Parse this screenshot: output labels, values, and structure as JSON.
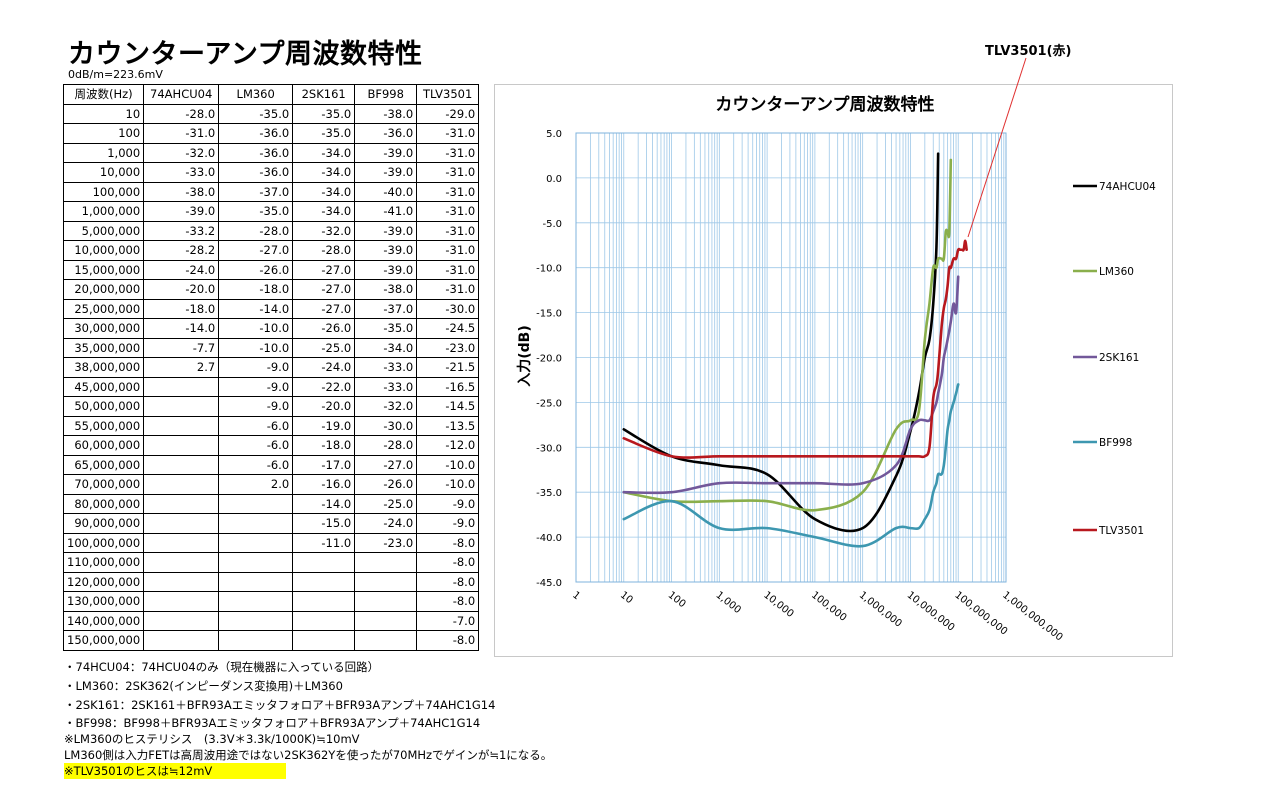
{
  "page": {
    "title": "カウンターアンプ周波数特性",
    "unit_note": "0dB/m=223.6mV",
    "callout_label": "TLV3501(赤)"
  },
  "table": {
    "headers": [
      "周波数(Hz)",
      "74AHCU04",
      "LM360",
      "2SK161",
      "BF998",
      "TLV3501"
    ],
    "rows": [
      [
        "10",
        "-28.0",
        "-35.0",
        "-35.0",
        "-38.0",
        "-29.0"
      ],
      [
        "100",
        "-31.0",
        "-36.0",
        "-35.0",
        "-36.0",
        "-31.0"
      ],
      [
        "1,000",
        "-32.0",
        "-36.0",
        "-34.0",
        "-39.0",
        "-31.0"
      ],
      [
        "10,000",
        "-33.0",
        "-36.0",
        "-34.0",
        "-39.0",
        "-31.0"
      ],
      [
        "100,000",
        "-38.0",
        "-37.0",
        "-34.0",
        "-40.0",
        "-31.0"
      ],
      [
        "1,000,000",
        "-39.0",
        "-35.0",
        "-34.0",
        "-41.0",
        "-31.0"
      ],
      [
        "5,000,000",
        "-33.2",
        "-28.0",
        "-32.0",
        "-39.0",
        "-31.0"
      ],
      [
        "10,000,000",
        "-28.2",
        "-27.0",
        "-28.0",
        "-39.0",
        "-31.0"
      ],
      [
        "15,000,000",
        "-24.0",
        "-26.0",
        "-27.0",
        "-39.0",
        "-31.0"
      ],
      [
        "20,000,000",
        "-20.0",
        "-18.0",
        "-27.0",
        "-38.0",
        "-31.0"
      ],
      [
        "25,000,000",
        "-18.0",
        "-14.0",
        "-27.0",
        "-37.0",
        "-30.0"
      ],
      [
        "30,000,000",
        "-14.0",
        "-10.0",
        "-26.0",
        "-35.0",
        "-24.5"
      ],
      [
        "35,000,000",
        "-7.7",
        "-10.0",
        "-25.0",
        "-34.0",
        "-23.0"
      ],
      [
        "38,000,000",
        "2.7",
        "-9.0",
        "-24.0",
        "-33.0",
        "-21.5"
      ],
      [
        "45,000,000",
        "",
        "-9.0",
        "-22.0",
        "-33.0",
        "-16.5"
      ],
      [
        "50,000,000",
        "",
        "-9.0",
        "-20.0",
        "-32.0",
        "-14.5"
      ],
      [
        "55,000,000",
        "",
        "-6.0",
        "-19.0",
        "-30.0",
        "-13.5"
      ],
      [
        "60,000,000",
        "",
        "-6.0",
        "-18.0",
        "-28.0",
        "-12.0"
      ],
      [
        "65,000,000",
        "",
        "-6.0",
        "-17.0",
        "-27.0",
        "-10.0"
      ],
      [
        "70,000,000",
        "",
        "2.0",
        "-16.0",
        "-26.0",
        "-10.0"
      ],
      [
        "80,000,000",
        "",
        "",
        "-14.0",
        "-25.0",
        "-9.0"
      ],
      [
        "90,000,000",
        "",
        "",
        "-15.0",
        "-24.0",
        "-9.0"
      ],
      [
        "100,000,000",
        "",
        "",
        "-11.0",
        "-23.0",
        "-8.0"
      ],
      [
        "110,000,000",
        "",
        "",
        "",
        "",
        "-8.0"
      ],
      [
        "120,000,000",
        "",
        "",
        "",
        "",
        "-8.0"
      ],
      [
        "130,000,000",
        "",
        "",
        "",
        "",
        "-8.0"
      ],
      [
        "140,000,000",
        "",
        "",
        "",
        "",
        "-7.0"
      ],
      [
        "150,000,000",
        "",
        "",
        "",
        "",
        "-8.0"
      ]
    ]
  },
  "notes": [
    "・74HCU04：74HCU04のみ（現在機器に入っている回路）",
    "・LM360：2SK362(インピーダンス変換用)＋LM360",
    "・2SK161：2SK161＋BFR93Aエミッタフォロア＋BFR93Aアンプ＋74AHC1G14",
    "・BF998：BF998＋BFR93Aエミッタフォロア＋BFR93Aアンプ＋74AHC1G14",
    "※LM360のヒステリシス　(3.3V＊3.3k/1000K)≒10mV",
    "LM360側は入力FETは高周波用途ではない2SK362Yを使ったが70MHzでゲインが≒1になる。",
    "※TLV3501のヒスは≒12mV"
  ],
  "chart_data": {
    "type": "line",
    "title": "カウンターアンプ周波数特性",
    "xlabel": "",
    "ylabel": "入力(dB)",
    "x_scale": "log",
    "xlim": [
      1,
      1000000000
    ],
    "ylim": [
      -45,
      5
    ],
    "y_ticks": [
      "5.0",
      "0.0",
      "-5.0",
      "-10.0",
      "-15.0",
      "-20.0",
      "-25.0",
      "-30.0",
      "-35.0",
      "-40.0",
      "-45.0"
    ],
    "x_ticks": [
      "1",
      "10",
      "100",
      "1,000",
      "10,000",
      "100,000",
      "1,000,000",
      "10,000,000",
      "100,000,000",
      "1,000,000,000"
    ],
    "grid": true,
    "legend_position": "right",
    "x": [
      10,
      100,
      1000,
      10000,
      100000,
      1000000,
      5000000,
      10000000,
      15000000,
      20000000,
      25000000,
      30000000,
      35000000,
      38000000,
      45000000,
      50000000,
      55000000,
      60000000,
      65000000,
      70000000,
      80000000,
      90000000,
      100000000,
      110000000,
      120000000,
      130000000,
      140000000,
      150000000
    ],
    "series": [
      {
        "name": "74AHCU04",
        "color": "#000000",
        "values": [
          -28.0,
          -31.0,
          -32.0,
          -33.0,
          -38.0,
          -39.0,
          -33.2,
          -28.2,
          -24.0,
          -20.0,
          -18.0,
          -14.0,
          -7.7,
          2.7,
          null,
          null,
          null,
          null,
          null,
          null,
          null,
          null,
          null,
          null,
          null,
          null,
          null,
          null
        ]
      },
      {
        "name": "LM360",
        "color": "#8aaf4c",
        "values": [
          -35.0,
          -36.0,
          -36.0,
          -36.0,
          -37.0,
          -35.0,
          -28.0,
          -27.0,
          -26.0,
          -18.0,
          -14.0,
          -10.0,
          -10.0,
          -9.0,
          -9.0,
          -9.0,
          -6.0,
          -6.0,
          -6.0,
          2.0,
          null,
          null,
          null,
          null,
          null,
          null,
          null,
          null
        ]
      },
      {
        "name": "2SK161",
        "color": "#72589a",
        "values": [
          -35.0,
          -35.0,
          -34.0,
          -34.0,
          -34.0,
          -34.0,
          -32.0,
          -28.0,
          -27.0,
          -27.0,
          -27.0,
          -26.0,
          -25.0,
          -24.0,
          -22.0,
          -20.0,
          -19.0,
          -18.0,
          -17.0,
          -16.0,
          -14.0,
          -15.0,
          -11.0,
          null,
          null,
          null,
          null,
          null
        ]
      },
      {
        "name": "BF998",
        "color": "#3d97b0",
        "values": [
          -38.0,
          -36.0,
          -39.0,
          -39.0,
          -40.0,
          -41.0,
          -39.0,
          -39.0,
          -39.0,
          -38.0,
          -37.0,
          -35.0,
          -34.0,
          -33.0,
          -33.0,
          -32.0,
          -30.0,
          -28.0,
          -27.0,
          -26.0,
          -25.0,
          -24.0,
          -23.0,
          null,
          null,
          null,
          null,
          null
        ]
      },
      {
        "name": "TLV3501",
        "color": "#b8181e",
        "values": [
          -29.0,
          -31.0,
          -31.0,
          -31.0,
          -31.0,
          -31.0,
          -31.0,
          -31.0,
          -31.0,
          -31.0,
          -30.0,
          -24.5,
          -23.0,
          -21.5,
          -16.5,
          -14.5,
          -13.5,
          -12.0,
          -10.0,
          -10.0,
          -9.0,
          -9.0,
          -8.0,
          -8.0,
          -8.0,
          -8.0,
          -7.0,
          -8.0
        ]
      }
    ]
  }
}
